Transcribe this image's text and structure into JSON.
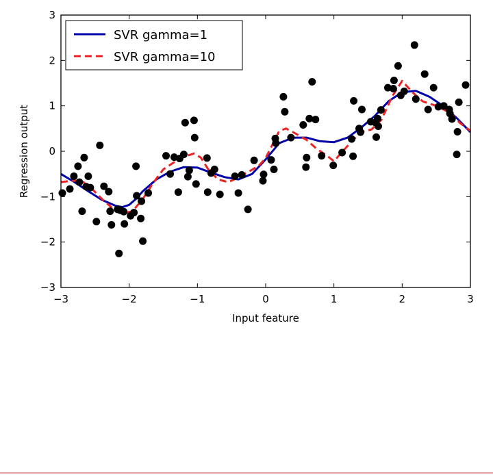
{
  "chart_data": {
    "type": "line",
    "title": "",
    "xlabel": "Input feature",
    "ylabel": "Regression output",
    "xlim": [
      -3,
      3
    ],
    "ylim": [
      -3,
      3
    ],
    "xticks": [
      -3,
      -2,
      -1,
      0,
      1,
      2,
      3
    ],
    "yticks": [
      -3,
      -2,
      -1,
      0,
      1,
      2,
      3
    ],
    "xtick_labels": [
      "−3",
      "−2",
      "−1",
      "0",
      "1",
      "2",
      "3"
    ],
    "ytick_labels": [
      "−3",
      "−2",
      "−1",
      "0",
      "1",
      "2",
      "3"
    ],
    "grid": false,
    "legend": {
      "position": "top-left",
      "entries": [
        "SVR gamma=1",
        "SVR gamma=10"
      ]
    },
    "series": [
      {
        "name": "SVR gamma=1",
        "style": "solid",
        "color": "#0000aa",
        "x": [
          -3.0,
          -2.8,
          -2.6,
          -2.4,
          -2.2,
          -2.1,
          -2.0,
          -1.9,
          -1.8,
          -1.6,
          -1.4,
          -1.2,
          -1.0,
          -0.8,
          -0.6,
          -0.4,
          -0.2,
          0.0,
          0.2,
          0.4,
          0.6,
          0.8,
          1.0,
          1.2,
          1.4,
          1.6,
          1.8,
          2.0,
          2.2,
          2.4,
          2.6,
          2.8,
          3.0
        ],
        "y": [
          -0.5,
          -0.68,
          -0.88,
          -1.07,
          -1.2,
          -1.23,
          -1.18,
          -1.05,
          -0.88,
          -0.62,
          -0.45,
          -0.35,
          -0.36,
          -0.47,
          -0.57,
          -0.62,
          -0.5,
          -0.18,
          0.18,
          0.3,
          0.3,
          0.22,
          0.2,
          0.3,
          0.52,
          0.78,
          1.1,
          1.3,
          1.33,
          1.2,
          1.0,
          0.73,
          0.42
        ]
      },
      {
        "name": "SVR gamma=10",
        "style": "dashed",
        "color": "#ee2222",
        "x": [
          -3.0,
          -2.85,
          -2.7,
          -2.55,
          -2.4,
          -2.25,
          -2.1,
          -1.95,
          -1.8,
          -1.65,
          -1.5,
          -1.35,
          -1.2,
          -1.05,
          -0.95,
          -0.85,
          -0.7,
          -0.55,
          -0.4,
          -0.25,
          -0.1,
          0.0,
          0.1,
          0.2,
          0.3,
          0.45,
          0.6,
          0.75,
          0.9,
          1.0,
          1.1,
          1.25,
          1.4,
          1.55,
          1.7,
          1.85,
          2.0,
          2.15,
          2.3,
          2.5,
          2.7,
          2.85,
          3.0
        ],
        "y": [
          -0.68,
          -0.65,
          -0.65,
          -0.82,
          -1.05,
          -1.25,
          -1.37,
          -1.32,
          -1.05,
          -0.7,
          -0.4,
          -0.25,
          -0.12,
          -0.05,
          -0.14,
          -0.38,
          -0.62,
          -0.68,
          -0.58,
          -0.45,
          -0.32,
          -0.15,
          0.15,
          0.45,
          0.5,
          0.38,
          0.25,
          0.05,
          -0.1,
          -0.22,
          -0.05,
          0.2,
          0.42,
          0.48,
          0.7,
          1.2,
          1.55,
          1.3,
          1.1,
          1.0,
          0.85,
          0.62,
          0.45
        ]
      },
      {
        "name": "",
        "style": "markers",
        "color": "#000000",
        "x": [
          -2.98,
          -2.87,
          -2.81,
          -2.75,
          -2.73,
          -2.69,
          -2.66,
          -2.63,
          -2.6,
          -2.57,
          -2.48,
          -2.43,
          -2.37,
          -2.3,
          -2.28,
          -2.26,
          -2.17,
          -2.15,
          -2.13,
          -2.08,
          -2.07,
          -1.98,
          -1.93,
          -1.9,
          -1.89,
          -1.83,
          -1.82,
          -1.8,
          -1.72,
          -1.46,
          -1.4,
          -1.34,
          -1.28,
          -1.26,
          -1.2,
          -1.18,
          -1.14,
          -1.12,
          -1.05,
          -1.04,
          -1.02,
          -0.86,
          -0.85,
          -0.8,
          -0.75,
          -0.67,
          -0.45,
          -0.4,
          -0.35,
          -0.26,
          -0.17,
          -0.04,
          -0.03,
          0.08,
          0.12,
          0.14,
          0.15,
          0.26,
          0.28,
          0.37,
          0.55,
          0.59,
          0.6,
          0.64,
          0.68,
          0.73,
          0.82,
          0.99,
          1.12,
          1.26,
          1.28,
          1.29,
          1.37,
          1.39,
          1.41,
          1.54,
          1.61,
          1.62,
          1.64,
          1.65,
          1.69,
          1.79,
          1.87,
          1.88,
          1.94,
          1.98,
          2.03,
          2.18,
          2.2,
          2.33,
          2.38,
          2.46,
          2.53,
          2.61,
          2.69,
          2.7,
          2.73,
          2.8,
          2.81,
          2.83,
          2.93
        ],
        "y": [
          -0.92,
          -0.83,
          -0.55,
          -0.33,
          -0.68,
          -1.32,
          -0.14,
          -0.78,
          -0.55,
          -0.8,
          -1.55,
          0.13,
          -0.77,
          -0.89,
          -1.32,
          -1.62,
          -1.28,
          -2.25,
          -1.3,
          -1.33,
          -1.6,
          -1.42,
          -1.35,
          -0.33,
          -0.98,
          -1.48,
          -1.1,
          -1.98,
          -0.92,
          -0.1,
          -0.5,
          -0.13,
          -0.9,
          -0.16,
          -0.07,
          0.63,
          -0.56,
          -0.42,
          0.68,
          0.3,
          -0.72,
          -0.15,
          -0.9,
          -0.48,
          -0.4,
          -0.95,
          -0.55,
          -0.92,
          -0.52,
          -1.28,
          -0.2,
          -0.65,
          -0.51,
          -0.19,
          -0.4,
          0.28,
          0.18,
          1.2,
          0.87,
          0.3,
          0.58,
          -0.35,
          -0.14,
          0.72,
          1.53,
          0.7,
          -0.1,
          -0.31,
          -0.03,
          0.27,
          -0.11,
          1.11,
          0.5,
          0.42,
          0.92,
          0.65,
          0.63,
          0.31,
          0.72,
          0.55,
          0.91,
          1.4,
          1.38,
          1.56,
          1.88,
          1.23,
          1.32,
          2.34,
          1.15,
          1.7,
          0.92,
          1.4,
          0.98,
          1.0,
          0.92,
          0.83,
          0.71,
          -0.07,
          0.43,
          1.08,
          1.46
        ]
      }
    ]
  }
}
